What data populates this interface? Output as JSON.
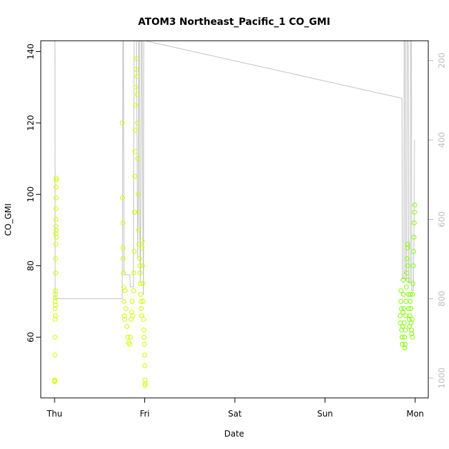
{
  "chart_data": {
    "type": "scatter",
    "title": "ATOM3 Northeast_Pacific_1 CO_GMI",
    "xlabel": "Date",
    "ylabel": "CO_GMI",
    "x_axis_type": "date",
    "xlim": [
      "2017-10-05T00:00",
      "2017-10-09T00:00"
    ],
    "x_ticks": [
      {
        "label": "Thu",
        "value": "2017-10-05T00:00"
      },
      {
        "label": "Fri",
        "value": "2017-10-06T00:00"
      },
      {
        "label": "Sat",
        "value": "2017-10-07T00:00"
      },
      {
        "label": "Sun",
        "value": "2017-10-08T00:00"
      },
      {
        "label": "Mon",
        "value": "2017-10-09T00:00"
      }
    ],
    "ylim": [
      43,
      143
    ],
    "y_ticks": [
      60,
      80,
      100,
      120,
      140
    ],
    "right_axis": {
      "reversed": true,
      "ylim": [
        1050,
        150
      ],
      "ticks": [
        200,
        400,
        600,
        800,
        1000
      ],
      "color": "#bdbdbd"
    },
    "grid": false,
    "legend": "none",
    "marker": "open-circle",
    "color_scale": [
      "#ffff00",
      "#ccff00",
      "#80ff00"
    ],
    "series": [
      {
        "kind": "points",
        "points": [
          [
            "2017-10-05T00:00",
            47.5
          ],
          [
            "2017-10-05T00:02",
            48
          ],
          [
            "2017-10-05T00:04",
            47.8
          ],
          [
            "2017-10-05T00:06",
            55
          ],
          [
            "2017-10-05T00:07",
            60
          ],
          [
            "2017-10-05T00:08",
            65
          ],
          [
            "2017-10-05T00:09",
            68
          ],
          [
            "2017-10-05T00:10",
            70
          ],
          [
            "2017-10-05T00:11",
            72
          ],
          [
            "2017-10-05T00:12",
            69
          ],
          [
            "2017-10-05T00:13",
            71
          ],
          [
            "2017-10-05T00:14",
            66
          ],
          [
            "2017-10-05T00:15",
            73
          ],
          [
            "2017-10-05T00:16",
            78
          ],
          [
            "2017-10-05T00:17",
            82
          ],
          [
            "2017-10-05T00:18",
            86
          ],
          [
            "2017-10-05T00:19",
            89
          ],
          [
            "2017-10-05T00:20",
            91
          ],
          [
            "2017-10-05T00:21",
            93
          ],
          [
            "2017-10-05T00:22",
            96
          ],
          [
            "2017-10-05T00:23",
            99
          ],
          [
            "2017-10-05T00:24",
            102
          ],
          [
            "2017-10-05T00:25",
            104
          ],
          [
            "2017-10-05T00:26",
            104.5
          ],
          [
            "2017-10-05T00:27",
            90
          ],
          [
            "2017-10-05T00:28",
            88
          ],
          [
            "2017-10-05T18:00",
            120
          ],
          [
            "2017-10-05T18:05",
            99
          ],
          [
            "2017-10-05T18:10",
            92
          ],
          [
            "2017-10-05T18:12",
            85
          ],
          [
            "2017-10-05T18:15",
            82
          ],
          [
            "2017-10-05T18:20",
            78
          ],
          [
            "2017-10-05T18:25",
            74
          ],
          [
            "2017-10-05T18:30",
            70
          ],
          [
            "2017-10-05T18:35",
            66
          ],
          [
            "2017-10-05T18:40",
            65
          ],
          [
            "2017-10-05T18:45",
            73
          ],
          [
            "2017-10-05T19:00",
            68
          ],
          [
            "2017-10-05T19:15",
            63
          ],
          [
            "2017-10-05T19:30",
            60
          ],
          [
            "2017-10-05T19:45",
            58.5
          ],
          [
            "2017-10-05T20:00",
            58
          ],
          [
            "2017-10-05T20:10",
            60
          ],
          [
            "2017-10-05T20:20",
            65
          ],
          [
            "2017-10-05T20:30",
            67
          ],
          [
            "2017-10-05T20:40",
            70
          ],
          [
            "2017-10-05T20:50",
            66
          ],
          [
            "2017-10-05T21:00",
            73
          ],
          [
            "2017-10-05T21:05",
            78
          ],
          [
            "2017-10-05T21:10",
            84
          ],
          [
            "2017-10-05T21:15",
            95
          ],
          [
            "2017-10-05T21:20",
            105
          ],
          [
            "2017-10-05T21:25",
            112
          ],
          [
            "2017-10-05T21:30",
            118
          ],
          [
            "2017-10-05T21:35",
            125
          ],
          [
            "2017-10-05T21:40",
            130
          ],
          [
            "2017-10-05T21:45",
            135
          ],
          [
            "2017-10-05T21:50",
            138
          ],
          [
            "2017-10-05T21:55",
            133
          ],
          [
            "2017-10-05T22:00",
            128
          ],
          [
            "2017-10-05T22:05",
            120
          ],
          [
            "2017-10-05T22:10",
            110
          ],
          [
            "2017-10-05T22:15",
            100
          ],
          [
            "2017-10-05T22:20",
            95
          ],
          [
            "2017-10-05T22:25",
            90
          ],
          [
            "2017-10-05T22:30",
            86
          ],
          [
            "2017-10-05T22:35",
            82
          ],
          [
            "2017-10-05T22:40",
            80
          ],
          [
            "2017-10-05T22:45",
            78
          ],
          [
            "2017-10-05T22:50",
            75
          ],
          [
            "2017-10-05T22:55",
            72
          ],
          [
            "2017-10-05T23:00",
            70
          ],
          [
            "2017-10-05T23:05",
            68
          ],
          [
            "2017-10-05T23:10",
            66
          ],
          [
            "2017-10-05T23:15",
            85
          ],
          [
            "2017-10-05T23:20",
            87
          ],
          [
            "2017-10-05T23:25",
            80
          ],
          [
            "2017-10-05T23:30",
            75
          ],
          [
            "2017-10-05T23:35",
            70
          ],
          [
            "2017-10-05T23:40",
            65
          ],
          [
            "2017-10-05T23:45",
            62
          ],
          [
            "2017-10-05T23:50",
            60
          ],
          [
            "2017-10-05T23:55",
            58
          ],
          [
            "2017-10-06T00:00",
            55
          ],
          [
            "2017-10-06T00:02",
            52
          ],
          [
            "2017-10-06T00:04",
            48
          ],
          [
            "2017-10-06T00:06",
            46.5
          ],
          [
            "2017-10-06T00:08",
            47
          ],
          [
            "2017-10-08T20:00",
            66
          ],
          [
            "2017-10-08T20:05",
            64
          ],
          [
            "2017-10-08T20:10",
            70
          ],
          [
            "2017-10-08T20:15",
            73
          ],
          [
            "2017-10-08T20:20",
            68
          ],
          [
            "2017-10-08T20:25",
            62
          ],
          [
            "2017-10-08T20:30",
            60
          ],
          [
            "2017-10-08T20:35",
            58
          ],
          [
            "2017-10-08T20:40",
            63
          ],
          [
            "2017-10-08T20:45",
            67
          ],
          [
            "2017-10-08T20:50",
            76
          ],
          [
            "2017-10-08T20:55",
            72
          ],
          [
            "2017-10-08T21:00",
            68
          ],
          [
            "2017-10-08T21:05",
            64
          ],
          [
            "2017-10-08T21:10",
            60
          ],
          [
            "2017-10-08T21:15",
            57
          ],
          [
            "2017-10-08T21:20",
            58
          ],
          [
            "2017-10-08T21:25",
            62
          ],
          [
            "2017-10-08T21:30",
            66
          ],
          [
            "2017-10-08T21:35",
            70
          ],
          [
            "2017-10-08T21:40",
            74
          ],
          [
            "2017-10-08T21:45",
            78
          ],
          [
            "2017-10-08T21:50",
            82
          ],
          [
            "2017-10-08T21:55",
            85
          ],
          [
            "2017-10-08T22:00",
            86
          ],
          [
            "2017-10-08T22:05",
            80
          ],
          [
            "2017-10-08T22:10",
            76
          ],
          [
            "2017-10-08T22:15",
            72
          ],
          [
            "2017-10-08T22:20",
            68
          ],
          [
            "2017-10-08T22:25",
            65
          ],
          [
            "2017-10-08T22:30",
            63
          ],
          [
            "2017-10-08T22:35",
            66
          ],
          [
            "2017-10-08T22:40",
            70
          ],
          [
            "2017-10-08T22:45",
            72
          ],
          [
            "2017-10-08T22:50",
            68
          ],
          [
            "2017-10-08T22:55",
            64
          ],
          [
            "2017-10-08T23:00",
            62
          ],
          [
            "2017-10-08T23:05",
            61
          ],
          [
            "2017-10-08T23:10",
            65
          ],
          [
            "2017-10-08T23:15",
            60
          ],
          [
            "2017-10-08T23:20",
            72
          ],
          [
            "2017-10-08T23:25",
            75
          ],
          [
            "2017-10-08T23:30",
            80
          ],
          [
            "2017-10-08T23:35",
            84
          ],
          [
            "2017-10-08T23:40",
            88
          ],
          [
            "2017-10-08T23:45",
            92
          ],
          [
            "2017-10-08T23:50",
            95
          ],
          [
            "2017-10-08T23:55",
            97
          ]
        ]
      },
      {
        "kind": "path",
        "axis": "right",
        "color": "#c0c0c0",
        "points": [
          [
            "2017-10-05T00:00",
            150
          ],
          [
            "2017-10-05T00:05",
            150
          ],
          [
            "2017-10-05T00:08",
            200
          ],
          [
            "2017-10-05T00:10",
            800
          ],
          [
            "2017-10-05T18:00",
            800
          ],
          [
            "2017-10-05T18:05",
            700
          ],
          [
            "2017-10-05T18:10",
            300
          ],
          [
            "2017-10-05T18:12",
            150
          ],
          [
            "2017-10-05T18:15",
            150
          ],
          [
            "2017-10-05T18:20",
            150
          ],
          [
            "2017-10-05T18:30",
            740
          ],
          [
            "2017-10-05T20:00",
            740
          ],
          [
            "2017-10-05T20:10",
            770
          ],
          [
            "2017-10-05T21:00",
            770
          ],
          [
            "2017-10-05T21:10",
            150
          ],
          [
            "2017-10-05T21:30",
            150
          ],
          [
            "2017-10-05T21:45",
            150
          ],
          [
            "2017-10-05T22:00",
            480
          ],
          [
            "2017-10-05T22:10",
            700
          ],
          [
            "2017-10-05T22:20",
            500
          ],
          [
            "2017-10-05T22:25",
            150
          ],
          [
            "2017-10-05T22:35",
            150
          ],
          [
            "2017-10-05T22:40",
            600
          ],
          [
            "2017-10-05T22:50",
            760
          ],
          [
            "2017-10-05T23:00",
            520
          ],
          [
            "2017-10-05T23:05",
            150
          ],
          [
            "2017-10-05T23:20",
            150
          ],
          [
            "2017-10-05T23:30",
            600
          ],
          [
            "2017-10-05T23:40",
            790
          ],
          [
            "2017-10-05T23:45",
            150
          ],
          [
            "2017-10-06T00:00",
            150
          ],
          [
            "2017-10-06T00:05",
            150
          ],
          [
            "2017-10-08T20:30",
            295
          ],
          [
            "2017-10-08T20:35",
            750
          ],
          [
            "2017-10-08T21:00",
            750
          ],
          [
            "2017-10-08T21:05",
            150
          ],
          [
            "2017-10-08T21:20",
            150
          ],
          [
            "2017-10-08T21:25",
            750
          ],
          [
            "2017-10-08T21:45",
            750
          ],
          [
            "2017-10-08T21:50",
            150
          ],
          [
            "2017-10-08T22:10",
            150
          ],
          [
            "2017-10-08T22:15",
            760
          ],
          [
            "2017-10-08T22:40",
            760
          ],
          [
            "2017-10-08T22:45",
            150
          ],
          [
            "2017-10-08T23:00",
            150
          ],
          [
            "2017-10-08T23:05",
            780
          ],
          [
            "2017-10-08T23:30",
            780
          ],
          [
            "2017-10-08T23:40",
            650
          ],
          [
            "2017-10-08T23:50",
            400
          ],
          [
            "2017-10-08T23:55",
            400
          ]
        ]
      }
    ]
  }
}
